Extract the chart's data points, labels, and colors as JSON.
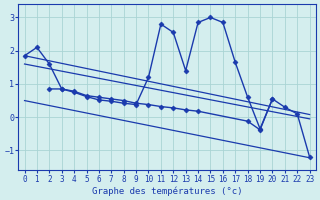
{
  "background_color": "#d4eeee",
  "grid_color": "#aad4d4",
  "line_color": "#1a3aad",
  "xlabel": "Graphe des températures (°c)",
  "ylim": [
    -1.6,
    3.4
  ],
  "xlim": [
    -0.5,
    23.5
  ],
  "yticks": [
    -1,
    0,
    1,
    2,
    3
  ],
  "xticks": [
    0,
    1,
    2,
    3,
    4,
    5,
    6,
    7,
    8,
    9,
    10,
    11,
    12,
    13,
    14,
    15,
    16,
    17,
    18,
    19,
    20,
    21,
    22,
    23
  ],
  "series": [
    {
      "x": [
        0,
        1,
        2,
        3,
        4,
        5,
        6,
        7,
        8,
        9,
        10,
        11,
        12,
        13,
        14,
        15,
        16,
        17,
        18,
        19,
        20
      ],
      "y": [
        1.85,
        2.1,
        1.6,
        0.85,
        0.75,
        0.62,
        0.52,
        0.48,
        0.42,
        0.38,
        1.2,
        2.8,
        2.55,
        1.4,
        2.85,
        3.0,
        2.85,
        1.65,
        0.6,
        -0.35,
        0.55
      ],
      "marker": "D",
      "markersize": 2.5,
      "linewidth": 1.0
    },
    {
      "x": [
        0,
        23
      ],
      "y": [
        1.85,
        0.08
      ],
      "marker": null,
      "markersize": 0,
      "linewidth": 0.9
    },
    {
      "x": [
        0,
        23
      ],
      "y": [
        1.6,
        -0.05
      ],
      "marker": null,
      "markersize": 0,
      "linewidth": 0.9
    },
    {
      "x": [
        2,
        3,
        4,
        5,
        6,
        7,
        8,
        9,
        10,
        11,
        12,
        13,
        14,
        18,
        19,
        20,
        21,
        22,
        23
      ],
      "y": [
        0.85,
        0.85,
        0.78,
        0.65,
        0.6,
        0.55,
        0.5,
        0.42,
        0.38,
        0.32,
        0.28,
        0.22,
        0.18,
        -0.12,
        -0.38,
        0.55,
        0.3,
        0.1,
        -1.2
      ],
      "marker": "D",
      "markersize": 2.5,
      "linewidth": 1.0
    },
    {
      "x": [
        0,
        23
      ],
      "y": [
        0.5,
        -1.22
      ],
      "marker": null,
      "markersize": 0,
      "linewidth": 0.9
    }
  ]
}
